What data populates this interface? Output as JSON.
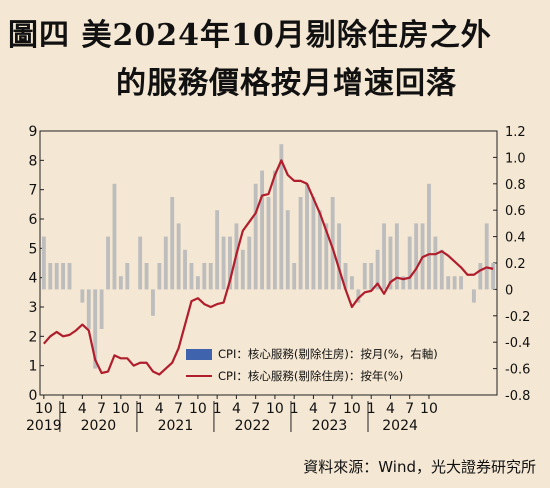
{
  "title": {
    "line1": "圖四  美2024年10月剔除住房之外",
    "line2": "的服務價格按月增速回落"
  },
  "source": "資料來源：Wind，光大證券研究所",
  "chart_data": {
    "type": "bar+line",
    "x_tick_labels": [
      "10",
      "1",
      "4",
      "7",
      "10",
      "1",
      "4",
      "7",
      "10",
      "1",
      "4",
      "7",
      "10",
      "1",
      "4",
      "7",
      "10",
      "1",
      "4",
      "7",
      "10"
    ],
    "x_year_labels": [
      "2019",
      "2020",
      "2021",
      "2022",
      "2023",
      "2024"
    ],
    "left_axis": {
      "ylim": [
        0,
        9
      ],
      "ticks": [
        "0",
        "1",
        "2",
        "3",
        "4",
        "5",
        "6",
        "7",
        "8",
        "9"
      ]
    },
    "right_axis": {
      "ylim": [
        -0.8,
        1.2
      ],
      "ticks": [
        "-0.8",
        "-0.6",
        "-0.4",
        "-0.2",
        "0",
        "0.2",
        "0.4",
        "0.6",
        "0.8",
        "1.0",
        "1.2"
      ]
    },
    "series": [
      {
        "name": "CPI：核心服務(剔除住房)：按月(%，右軸)",
        "type": "bar",
        "axis": "right",
        "color": "#bdbdbd",
        "values": [
          0.4,
          0.2,
          0.2,
          0.2,
          0.2,
          0,
          -0.1,
          -0.3,
          -0.6,
          -0.3,
          0.4,
          0.8,
          0.1,
          0.2,
          0,
          0.4,
          0.2,
          -0.2,
          0.2,
          0.4,
          0.7,
          0.5,
          0.3,
          0.2,
          0.1,
          0.2,
          0.2,
          0.6,
          0.4,
          0.4,
          0.5,
          0.3,
          0.4,
          0.8,
          0.9,
          0.7,
          0.9,
          1.1,
          0.6,
          0.2,
          0.7,
          0.8,
          0.7,
          0.6,
          0.5,
          0.7,
          0.5,
          0.2,
          0.1,
          -0.1,
          0.2,
          0.2,
          0.3,
          0.5,
          0.4,
          0.5,
          0.1,
          0.4,
          0.5,
          0.5,
          0.8,
          0.4,
          0.3,
          0.1,
          0.1,
          0.1,
          0,
          -0.1,
          0.2,
          0.5,
          0.2
        ]
      },
      {
        "name": "CPI：核心服務(剔除住房)：按年(%)",
        "type": "line",
        "axis": "left",
        "color": "#b01e2d",
        "values": [
          1.75,
          2.0,
          2.15,
          2.0,
          2.05,
          2.2,
          2.4,
          2.2,
          1.2,
          0.75,
          0.8,
          1.35,
          1.25,
          1.25,
          1.0,
          1.1,
          1.1,
          0.8,
          0.7,
          0.9,
          1.1,
          1.6,
          2.4,
          3.2,
          3.3,
          3.1,
          3.0,
          3.1,
          3.15,
          3.9,
          4.8,
          5.6,
          5.9,
          6.2,
          6.8,
          6.85,
          7.5,
          8.0,
          7.5,
          7.3,
          7.3,
          7.2,
          6.7,
          6.2,
          5.6,
          5.0,
          4.3,
          3.6,
          3.0,
          3.3,
          3.5,
          3.55,
          3.8,
          3.45,
          3.85,
          4.0,
          3.95,
          4.0,
          4.3,
          4.7,
          4.8,
          4.8,
          4.9,
          4.75,
          4.55,
          4.35,
          4.1,
          4.1,
          4.25,
          4.35,
          4.3
        ]
      }
    ]
  }
}
